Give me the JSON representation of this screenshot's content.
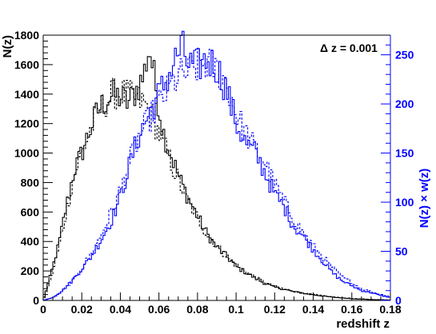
{
  "chart_data": {
    "type": "line",
    "title": "",
    "annotation": "Δ z = 0.001",
    "xlabel": "redshift z",
    "ylabel_left": "N(z)",
    "ylabel_right": "N(z) × w(z)",
    "xlim": [
      0,
      0.18
    ],
    "ylim_left": [
      0,
      1800
    ],
    "ylim_right": [
      0,
      270
    ],
    "x_ticks": [
      0,
      0.02,
      0.04,
      0.06,
      0.08,
      0.1,
      0.12,
      0.14,
      0.16,
      0.18
    ],
    "x_tick_labels": [
      "0",
      "0.02",
      "0.04",
      "0.06",
      "0.08",
      "0.1",
      "0.12",
      "0.14",
      "0.16",
      "0.18"
    ],
    "y_left_ticks": [
      0,
      200,
      400,
      600,
      800,
      1000,
      1200,
      1400,
      1600,
      1800
    ],
    "y_left_tick_labels": [
      "0",
      "200",
      "400",
      "600",
      "800",
      "1000",
      "1200",
      "1400",
      "1600",
      "1800"
    ],
    "y_right_ticks": [
      0,
      50,
      100,
      150,
      200,
      250
    ],
    "y_right_tick_labels": [
      "0",
      "50",
      "100",
      "150",
      "200",
      "250"
    ],
    "bin_width": 0.001,
    "grid": false,
    "colors": {
      "left_axis": "#000000",
      "right_axis": "#0000ff",
      "nz": "#000000",
      "nzw": "#0000ff"
    },
    "series": [
      {
        "axis": "left",
        "color": "#000000",
        "style": "solid",
        "x": [
          0.0,
          0.004,
          0.008,
          0.012,
          0.016,
          0.02,
          0.024,
          0.028,
          0.032,
          0.036,
          0.04,
          0.044,
          0.048,
          0.052,
          0.055,
          0.058,
          0.062,
          0.066,
          0.07,
          0.075,
          0.08,
          0.085,
          0.09,
          0.095,
          0.1,
          0.105,
          0.11,
          0.115,
          0.12,
          0.125,
          0.13,
          0.135,
          0.14,
          0.145,
          0.15,
          0.155,
          0.16,
          0.165,
          0.17,
          0.175,
          0.18
        ],
        "y": [
          0,
          180,
          380,
          640,
          880,
          1000,
          1150,
          1280,
          1350,
          1390,
          1380,
          1340,
          1420,
          1520,
          1720,
          1480,
          1150,
          1000,
          850,
          700,
          570,
          450,
          360,
          300,
          230,
          190,
          150,
          115,
          90,
          75,
          60,
          48,
          38,
          30,
          22,
          17,
          12,
          9,
          6,
          4,
          3
        ]
      },
      {
        "axis": "left",
        "color": "#000000",
        "style": "dashed",
        "x": [
          0.0,
          0.004,
          0.008,
          0.012,
          0.016,
          0.02,
          0.024,
          0.028,
          0.032,
          0.036,
          0.04,
          0.044,
          0.048,
          0.052,
          0.056,
          0.06,
          0.064,
          0.068,
          0.072,
          0.076,
          0.08,
          0.085,
          0.09,
          0.095,
          0.1,
          0.105,
          0.11,
          0.115,
          0.12,
          0.125,
          0.13,
          0.135,
          0.14,
          0.145,
          0.15,
          0.155,
          0.16,
          0.165,
          0.17,
          0.175,
          0.18
        ],
        "y": [
          0,
          150,
          360,
          600,
          850,
          1000,
          1140,
          1270,
          1340,
          1400,
          1410,
          1390,
          1370,
          1340,
          1260,
          1140,
          1010,
          880,
          760,
          650,
          560,
          450,
          370,
          300,
          240,
          195,
          155,
          120,
          95,
          77,
          62,
          50,
          40,
          32,
          24,
          18,
          13,
          10,
          7,
          5,
          3
        ]
      },
      {
        "axis": "right",
        "color": "#0000ff",
        "style": "solid",
        "x": [
          0.0,
          0.005,
          0.01,
          0.015,
          0.02,
          0.025,
          0.03,
          0.035,
          0.04,
          0.045,
          0.05,
          0.055,
          0.06,
          0.065,
          0.07,
          0.072,
          0.075,
          0.08,
          0.085,
          0.09,
          0.095,
          0.1,
          0.105,
          0.11,
          0.115,
          0.12,
          0.125,
          0.13,
          0.135,
          0.14,
          0.145,
          0.15,
          0.155,
          0.16,
          0.165,
          0.17,
          0.175,
          0.18
        ],
        "y": [
          0,
          3,
          10,
          20,
          32,
          45,
          62,
          80,
          105,
          140,
          170,
          190,
          210,
          228,
          252,
          258,
          240,
          238,
          245,
          238,
          215,
          180,
          160,
          150,
          130,
          108,
          95,
          75,
          65,
          52,
          40,
          28,
          20,
          15,
          10,
          8,
          5,
          3
        ]
      },
      {
        "axis": "right",
        "color": "#0000ff",
        "style": "dashed",
        "x": [
          0.0,
          0.005,
          0.01,
          0.015,
          0.02,
          0.025,
          0.03,
          0.035,
          0.04,
          0.045,
          0.05,
          0.055,
          0.06,
          0.065,
          0.07,
          0.075,
          0.08,
          0.085,
          0.09,
          0.095,
          0.1,
          0.105,
          0.11,
          0.115,
          0.12,
          0.125,
          0.13,
          0.135,
          0.14,
          0.145,
          0.15,
          0.155,
          0.16,
          0.165,
          0.17,
          0.175,
          0.18
        ],
        "y": [
          0,
          3,
          9,
          20,
          33,
          48,
          66,
          88,
          112,
          142,
          168,
          185,
          200,
          215,
          228,
          232,
          238,
          242,
          235,
          222,
          190,
          170,
          155,
          140,
          118,
          100,
          82,
          68,
          55,
          44,
          33,
          24,
          18,
          12,
          9,
          6,
          4
        ]
      }
    ]
  }
}
